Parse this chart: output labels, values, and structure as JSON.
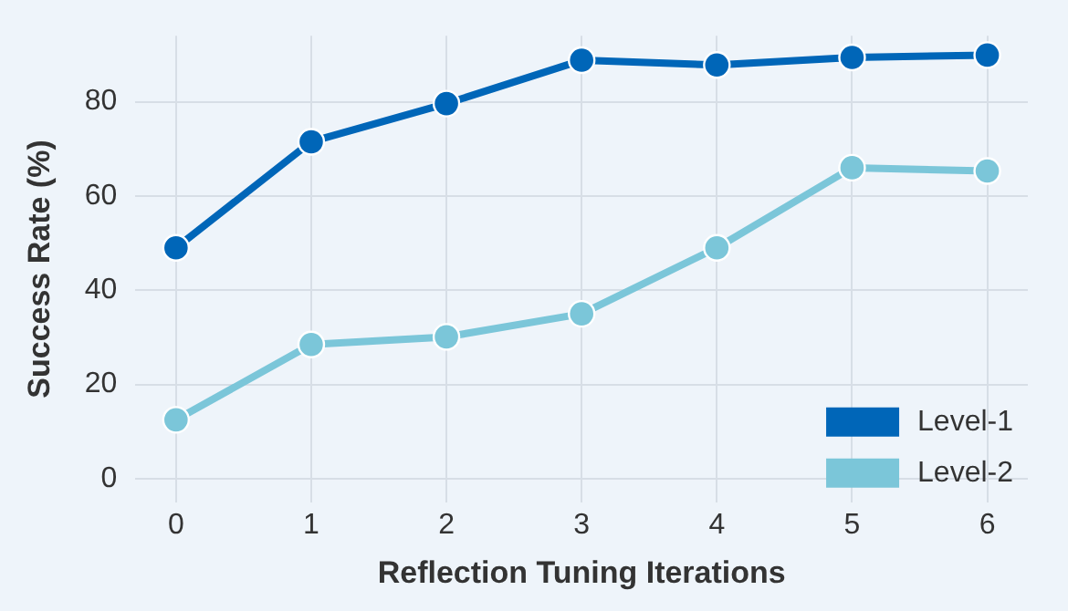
{
  "chart_data": {
    "type": "line",
    "xlabel": "Reflection Tuning Iterations",
    "ylabel": "Success Rate (%)",
    "x": [
      0,
      1,
      2,
      3,
      4,
      5,
      6
    ],
    "series": [
      {
        "name": "Level-1",
        "color": "#0066b8",
        "values": [
          49,
          71.5,
          79.6,
          88.8,
          87.8,
          89.4,
          89.9
        ]
      },
      {
        "name": "Level-2",
        "color": "#7bc6d9",
        "values": [
          12.5,
          28.5,
          30.1,
          35,
          49,
          66,
          65.3
        ]
      }
    ],
    "xlim": [
      -0.3,
      6.3
    ],
    "xticks": [
      0,
      1,
      2,
      3,
      4,
      5,
      6
    ],
    "ylim": [
      -5,
      94
    ],
    "yticks": [
      0,
      20,
      40,
      60,
      80
    ],
    "grid": true,
    "legend": "bottom right",
    "marker": "circle",
    "line_style": "solid"
  }
}
